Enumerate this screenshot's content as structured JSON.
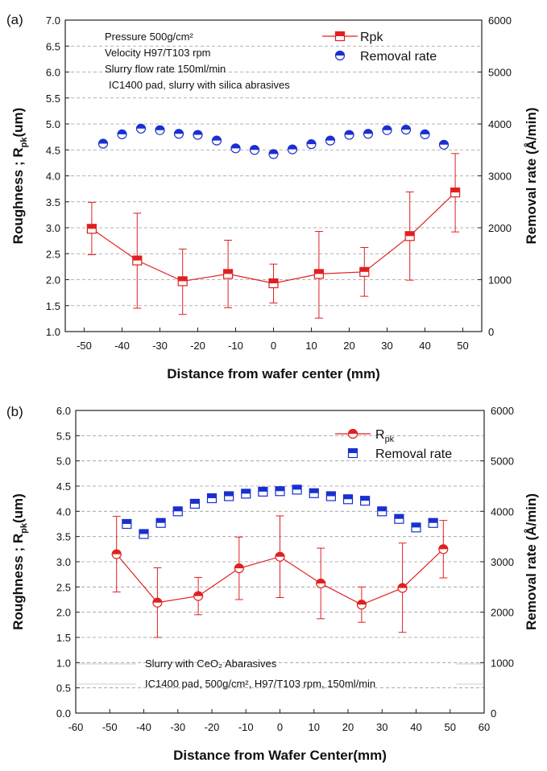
{
  "chart_data": [
    {
      "panel_label": "(a)",
      "type": "line",
      "xlabel": "Distance from wafer center (mm)",
      "ylabel_main": "Roughness ; R",
      "ylabel_sub": "pk",
      "ylabel_unit": "(um)",
      "y2label": "Removal rate (Å/min)",
      "xlim": [
        -55,
        55
      ],
      "xticks": [
        -50,
        -40,
        -30,
        -20,
        -10,
        0,
        10,
        20,
        30,
        40,
        50
      ],
      "ylim": [
        1.0,
        7.0
      ],
      "yticks": [
        1.0,
        1.5,
        2.0,
        2.5,
        3.0,
        3.5,
        4.0,
        4.5,
        5.0,
        5.5,
        6.0,
        6.5,
        7.0
      ],
      "y2lim": [
        0,
        6000
      ],
      "y2ticks": [
        0,
        1000,
        2000,
        3000,
        4000,
        5000,
        6000
      ],
      "annotations": [
        "Pressure 500g/cm²",
        "Velocity H97/T103 rpm",
        "Slurry flow rate 150ml/min",
        "IC1400 pad, slurry with silica abrasives"
      ],
      "legend_position": "top-right",
      "series": [
        {
          "name": "Rpk",
          "axis": "left",
          "color": "#e02020",
          "marker": "half-square",
          "x": [
            -48,
            -36,
            -24,
            -12,
            0,
            12,
            24,
            36,
            48
          ],
          "y": [
            2.98,
            2.37,
            1.97,
            2.11,
            1.93,
            2.11,
            2.15,
            2.84,
            3.68
          ],
          "err_low": [
            2.48,
            1.45,
            1.33,
            1.46,
            1.55,
            1.26,
            1.68,
            1.99,
            2.92
          ],
          "err_high": [
            3.49,
            3.28,
            2.59,
            2.76,
            2.3,
            2.93,
            2.62,
            3.69,
            4.43
          ]
        },
        {
          "name": "Removal rate",
          "axis": "right",
          "color": "#1a2fd0",
          "marker": "half-circle",
          "x": [
            -45,
            -40,
            -35,
            -30,
            -25,
            -20,
            -15,
            -10,
            -5,
            0,
            5,
            10,
            15,
            20,
            25,
            30,
            35,
            40,
            45
          ],
          "y": [
            3620,
            3800,
            3910,
            3880,
            3810,
            3790,
            3680,
            3530,
            3500,
            3420,
            3510,
            3610,
            3680,
            3790,
            3810,
            3880,
            3890,
            3800,
            3600
          ]
        }
      ]
    },
    {
      "panel_label": "(b)",
      "type": "line",
      "xlabel": "Distance from Wafer Center(mm)",
      "ylabel_main": "Roughness ; R",
      "ylabel_sub": "pk",
      "ylabel_unit": "(um)",
      "y2label": "Removal rate (Å/min)",
      "xlim": [
        -60,
        60
      ],
      "xticks": [
        -60,
        -50,
        -40,
        -30,
        -20,
        -10,
        0,
        10,
        20,
        30,
        40,
        50,
        60
      ],
      "ylim": [
        0.0,
        6.0
      ],
      "yticks": [
        0.0,
        0.5,
        1.0,
        1.5,
        2.0,
        2.5,
        3.0,
        3.5,
        4.0,
        4.5,
        5.0,
        5.5,
        6.0
      ],
      "y2lim": [
        0,
        6000
      ],
      "y2ticks": [
        0,
        1000,
        2000,
        3000,
        4000,
        5000,
        6000
      ],
      "annotations": [
        "Slurry with CeO₂ Abarasives",
        "IC1400 pad, 500g/cm², H97/T103 rpm, 150ml/min"
      ],
      "legend_position": "top-right",
      "series": [
        {
          "name": "Rpk",
          "axis": "left",
          "color": "#e02020",
          "marker": "half-circle",
          "x": [
            -48,
            -36,
            -24,
            -12,
            0,
            12,
            24,
            36,
            48
          ],
          "y": [
            3.15,
            2.19,
            2.32,
            2.87,
            3.1,
            2.57,
            2.15,
            2.48,
            3.25
          ],
          "err_low": [
            2.4,
            1.5,
            1.95,
            2.25,
            2.29,
            1.87,
            1.8,
            1.6,
            2.68
          ],
          "err_high": [
            3.9,
            2.88,
            2.69,
            3.49,
            3.91,
            3.27,
            2.5,
            3.37,
            3.82
          ]
        },
        {
          "name": "Removal rate",
          "axis": "right",
          "color": "#1a2fd0",
          "marker": "half-square",
          "x": [
            -45,
            -40,
            -35,
            -30,
            -25,
            -20,
            -15,
            -10,
            -5,
            0,
            5,
            10,
            15,
            20,
            25,
            30,
            35,
            40,
            45
          ],
          "y": [
            3750,
            3550,
            3770,
            4000,
            4150,
            4260,
            4300,
            4350,
            4390,
            4400,
            4430,
            4360,
            4300,
            4240,
            4210,
            4000,
            3850,
            3680,
            3770
          ]
        }
      ]
    }
  ]
}
